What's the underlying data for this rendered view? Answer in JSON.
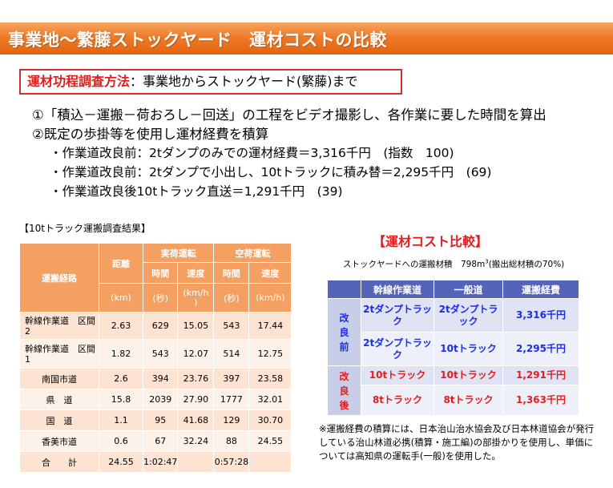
{
  "title": "事業地～繁藤ストックヤード　運材コストの比較",
  "method": {
    "label": "運材功程調査方法",
    "text": "：事業地からストックヤード(繁藤)まで"
  },
  "lines": [
    "①「積込－運搬－荷おろし－回送」の工程をビデオ撮影し、各作業に要した時間を算出",
    "②既定の歩掛等を使用し運材経費を積算"
  ],
  "sublines": [
    "・作業道改良前：2tダンプのみでの運材経費＝3,316千円　(指数　100)",
    "・作業道改良前：2tダンプで小出し、10tトラックに積み替＝2,295千円　(69)",
    "・作業道改良後10tトラック直送＝1,291千円　(39)"
  ],
  "left_table": {
    "caption": "【10tトラック運搬調査結果】",
    "headers": {
      "route": "運搬経路",
      "distance": "距離",
      "loaded": "実荷運転",
      "empty": "空荷運転",
      "time": "時間",
      "speed": "速度",
      "unit_km": "(km)",
      "unit_sec": "(秒)",
      "unit_kmh_split": "(km/h\n)",
      "unit_kmh": "(km/h)"
    },
    "rows": [
      {
        "route": "幹線作業道　区間2",
        "dist": "2.63",
        "lt": "629",
        "ls": "15.05",
        "et": "543",
        "es": "17.44"
      },
      {
        "route": "幹線作業道　区間1",
        "dist": "1.82",
        "lt": "543",
        "ls": "12.07",
        "et": "514",
        "es": "12.75"
      },
      {
        "route": "南国市道",
        "dist": "2.6",
        "lt": "394",
        "ls": "23.76",
        "et": "397",
        "es": "23.58"
      },
      {
        "route": "県　道",
        "dist": "15.8",
        "lt": "2039",
        "ls": "27.90",
        "et": "1777",
        "es": "32.01"
      },
      {
        "route": "国　道",
        "dist": "1.1",
        "lt": "95",
        "ls": "41.68",
        "et": "129",
        "es": "30.70"
      },
      {
        "route": "香美市道",
        "dist": "0.6",
        "lt": "67",
        "ls": "32.24",
        "et": "88",
        "es": "24.55"
      },
      {
        "route": "合　　計",
        "dist": "24.55",
        "lt": "1:02:47",
        "ls": "",
        "et": "0:57:28",
        "es": ""
      }
    ]
  },
  "right_table": {
    "title": "【運材コスト比較】",
    "caption_main": "ストックヤードへの運搬材積　798m",
    "caption_sup": "3",
    "caption_tail": "(搬出総材積の70%)",
    "headers": [
      "幹線作業道",
      "一般道",
      "運搬経費"
    ],
    "groups": [
      {
        "label": "改良前",
        "rows": [
          {
            "trunk": "2tダンプトラック",
            "general": "2tダンプトラック",
            "cost": "3,316千円"
          },
          {
            "trunk": "2tダンプトラック",
            "general": "10tトラック",
            "cost": "2,295千円"
          }
        ]
      },
      {
        "label": "改良後",
        "rows": [
          {
            "trunk": "10tトラック",
            "general": "10tトラック",
            "cost": "1,291千円"
          },
          {
            "trunk": "8tトラック",
            "general": "8tトラック",
            "cost": "1,363千円"
          }
        ]
      }
    ],
    "colors": {
      "header": "#5464b8",
      "before": "#1a2ee6",
      "after": "#e21d1d"
    }
  },
  "note": "※運搬経費の積算には、日本治山治水協会及び日本林道協会が発行している治山林道必携(積算・施工編)の部掛かりを使用し、単価については高知県の運転手(一般)を使用した。"
}
